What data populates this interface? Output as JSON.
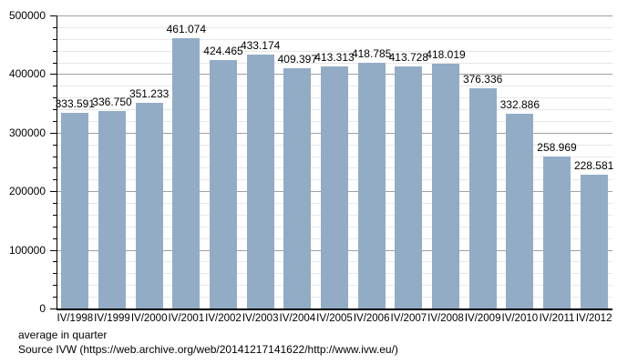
{
  "chart_data": {
    "type": "bar",
    "title": "",
    "xlabel": "",
    "ylabel": "",
    "categories": [
      "IV/1998",
      "IV/1999",
      "IV/2000",
      "IV/2001",
      "IV/2002",
      "IV/2003",
      "IV/2004",
      "IV/2005",
      "IV/2006",
      "IV/2007",
      "IV/2008",
      "IV/2009",
      "IV/2010",
      "IV/2011",
      "IV/2012"
    ],
    "values": [
      333591,
      336750,
      351233,
      461074,
      424465,
      433174,
      409397,
      413313,
      418785,
      413728,
      418019,
      376336,
      332886,
      258969,
      228581
    ],
    "value_labels": [
      "333.591",
      "336.750",
      "351.233",
      "461.074",
      "424.465",
      "433.174",
      "409.397",
      "413.313",
      "418.785",
      "413.728",
      "418.019",
      "376.336",
      "332.886",
      "258.969",
      "228.581"
    ],
    "ylim": [
      0,
      500000
    ],
    "y_major_step": 100000,
    "y_minor_step": 20000,
    "y_tick_labels": [
      "0",
      "100000",
      "200000",
      "300000",
      "400000",
      "500000"
    ],
    "grid": "horizontal-major-and-minor",
    "legend": "none"
  },
  "footer": {
    "line1": "average in quarter",
    "line2": "Source IVW (https://web.archive.org/web/20141217141622/http://www.ivw.eu/)"
  },
  "colors": {
    "bar_fill": "#92ACC6",
    "grid_major": "#A0A0A0",
    "grid_minor": "#E8E8E8",
    "axis": "#000000",
    "text": "#000000",
    "background": "#FFFFFF"
  }
}
